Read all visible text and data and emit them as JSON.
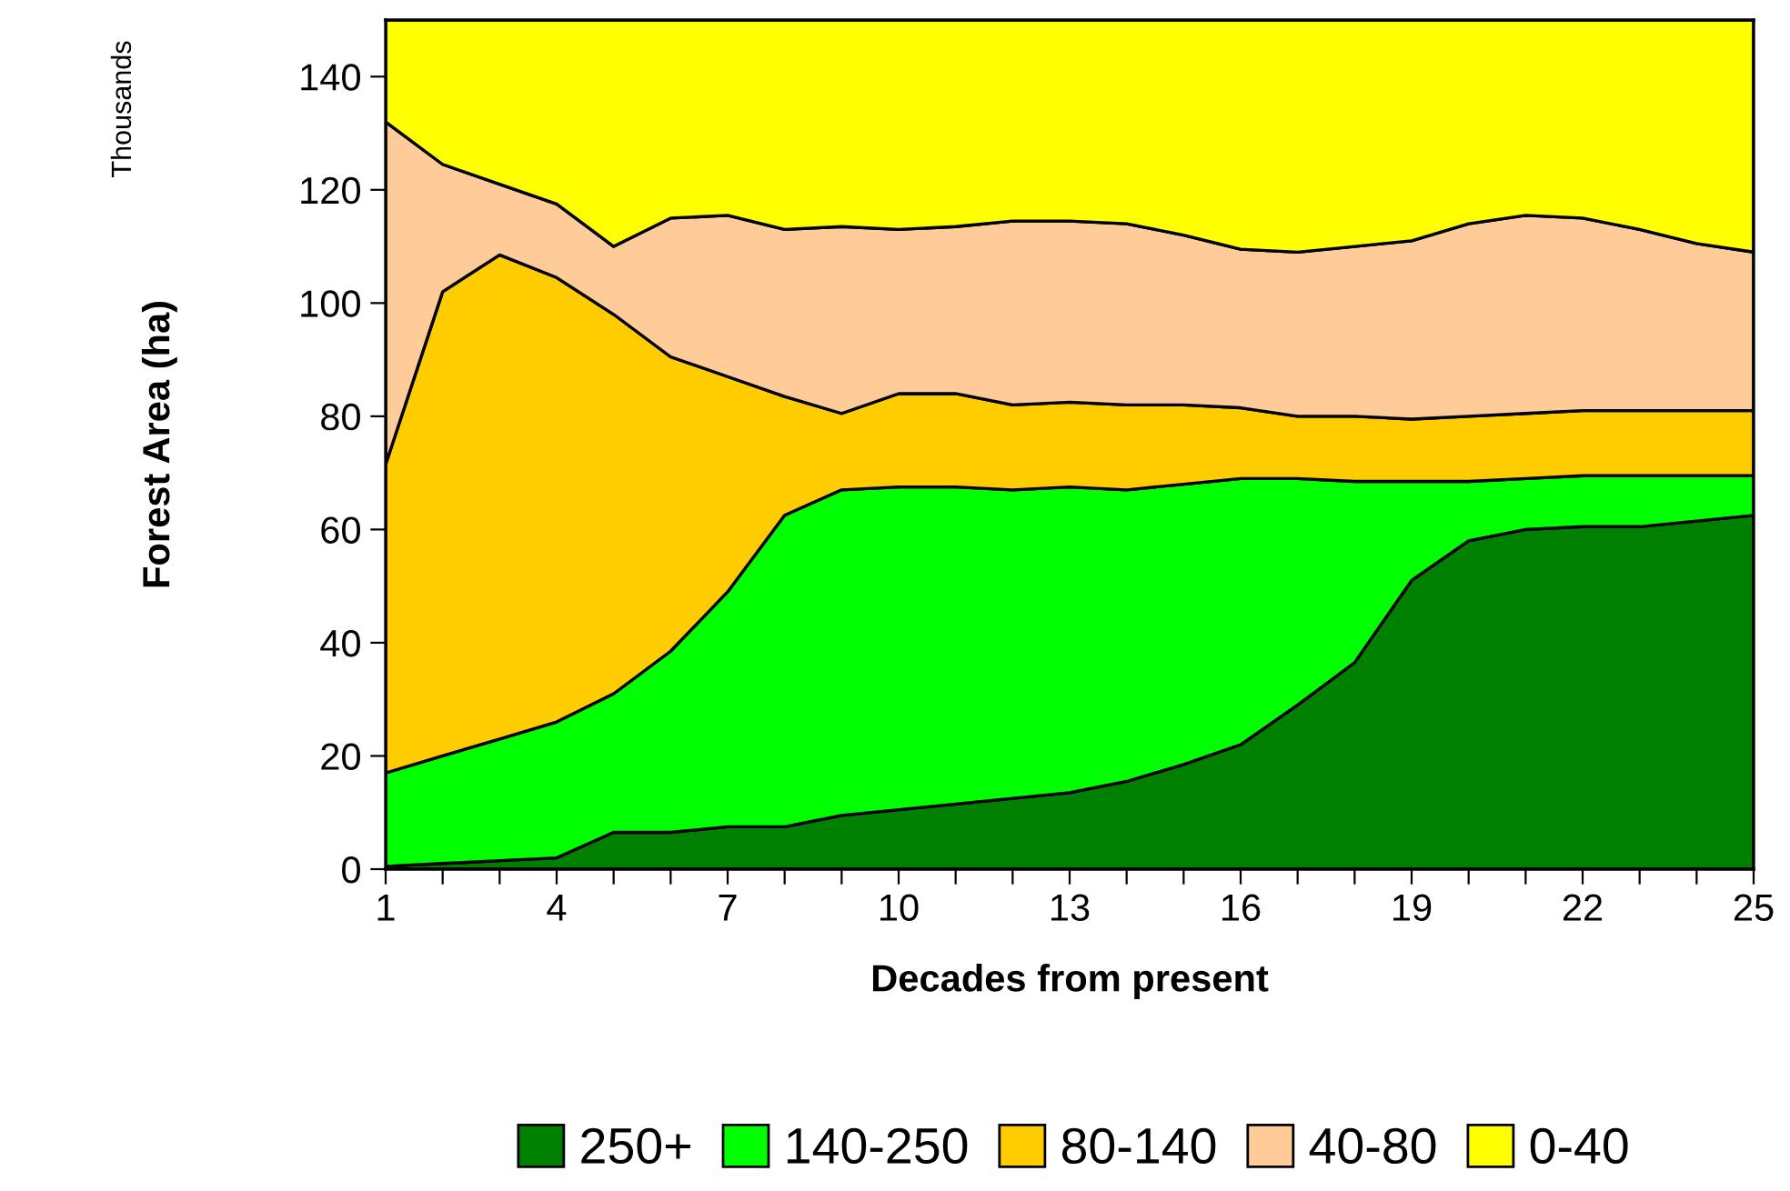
{
  "chart_data": {
    "type": "area",
    "stacked": true,
    "xlabel": "Decades from present",
    "ylabel": "Forest Area (ha)",
    "annotations": [
      "Thousands"
    ],
    "x": [
      1,
      2,
      3,
      4,
      5,
      6,
      7,
      8,
      9,
      10,
      11,
      12,
      13,
      14,
      15,
      16,
      17,
      18,
      19,
      20,
      21,
      22,
      23,
      24,
      25
    ],
    "series": [
      {
        "name": "250+",
        "color": "#008000",
        "values": [
          0.5,
          1,
          1.5,
          2,
          6.5,
          6.5,
          7.5,
          7.5,
          9.5,
          10.5,
          11.5,
          12.5,
          13.5,
          15.5,
          18.5,
          22,
          29,
          36.5,
          51,
          58,
          60,
          60.5,
          60.5,
          61.5,
          62.5
        ]
      },
      {
        "name": "140-250",
        "color": "#00ff00",
        "values": [
          16.5,
          19,
          21.5,
          24,
          24.5,
          32,
          41.5,
          55,
          57.5,
          57,
          56,
          54.5,
          54,
          51.5,
          49.5,
          47,
          40,
          32,
          17.5,
          10.5,
          9,
          9,
          9,
          8,
          7
        ]
      },
      {
        "name": "80-140",
        "color": "#ffcc00",
        "values": [
          54.5,
          82,
          85.5,
          78.5,
          67,
          52,
          38,
          21,
          13.5,
          16.5,
          16.5,
          15,
          15,
          15,
          14,
          12.5,
          11,
          11.5,
          11,
          11.5,
          11.5,
          11.5,
          11.5,
          11.5,
          11.5
        ]
      },
      {
        "name": "40-80",
        "color": "#ffcc99",
        "values": [
          60.5,
          22.5,
          12.5,
          13,
          12,
          24.5,
          28.5,
          29.5,
          33,
          29,
          29.5,
          32.5,
          32,
          32,
          30,
          28,
          29,
          30,
          31.5,
          34,
          35,
          34,
          32,
          29.5,
          28
        ]
      },
      {
        "name": "0-40",
        "color": "#ffff00",
        "values": [
          18,
          25.5,
          29,
          32.5,
          40,
          35,
          34.5,
          37,
          36.5,
          37,
          36.5,
          35.5,
          35.5,
          36,
          38,
          40.5,
          41,
          40,
          39,
          36,
          34.5,
          35,
          37,
          39.5,
          41
        ]
      }
    ],
    "xlim": [
      1,
      25
    ],
    "ylim": [
      0,
      150
    ],
    "xticks": [
      1,
      {
        "value": 2,
        "label": null
      },
      {
        "value": 3,
        "label": null
      },
      4,
      {
        "value": 5,
        "label": null
      },
      {
        "value": 6,
        "label": null
      },
      7,
      {
        "value": 8,
        "label": null
      },
      {
        "value": 9,
        "label": null
      },
      10,
      {
        "value": 11,
        "label": null
      },
      {
        "value": 12,
        "label": null
      },
      13,
      {
        "value": 14,
        "label": null
      },
      {
        "value": 15,
        "label": null
      },
      16,
      {
        "value": 17,
        "label": null
      },
      {
        "value": 18,
        "label": null
      },
      19,
      {
        "value": 20,
        "label": null
      },
      {
        "value": 21,
        "label": null
      },
      22,
      {
        "value": 23,
        "label": null
      },
      {
        "value": 24,
        "label": null
      },
      25
    ],
    "yticks": [
      0,
      20,
      40,
      60,
      80,
      100,
      120,
      140
    ],
    "grid": false,
    "legend": "bottom"
  }
}
